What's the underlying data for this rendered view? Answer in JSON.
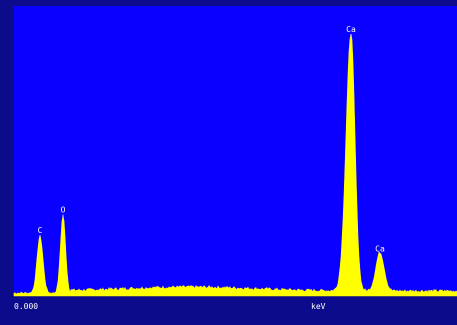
{
  "chart_data": {
    "type": "area",
    "xlabel": "keV",
    "x_start_label": "0.000",
    "colors": {
      "plot_background": "#0a00ff",
      "border": "#0b0b8c",
      "spectrum": "#ffff00",
      "text": "#ffffff"
    },
    "grid": false,
    "legend": "none",
    "peaks": [
      {
        "label": "C",
        "energy_kev": 0.28,
        "relative_height": 0.22
      },
      {
        "label": "O",
        "energy_kev": 0.52,
        "relative_height": 0.3
      },
      {
        "label": "Ca",
        "energy_kev": 3.69,
        "relative_height": 1.0
      },
      {
        "label": "Ca",
        "energy_kev": 4.01,
        "relative_height": 0.15
      }
    ]
  }
}
